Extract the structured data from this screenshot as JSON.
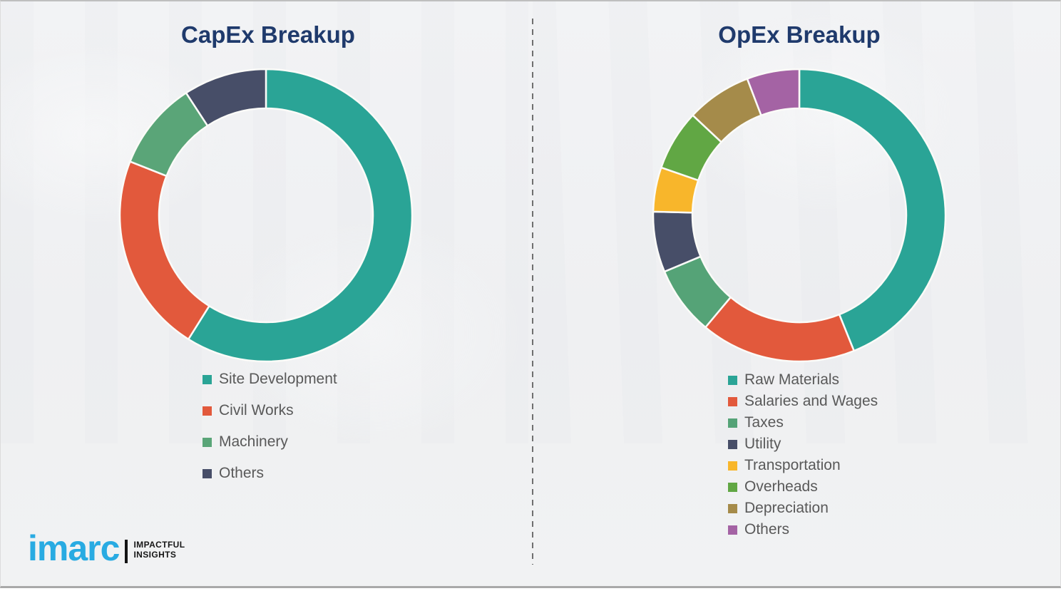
{
  "page": {
    "title_color": "#1f3a6c",
    "background_color": "#f1f2f3",
    "divider_color": "#6f6f6f",
    "legend_text_color": "#595959"
  },
  "chart_data": [
    {
      "type": "pie",
      "subtype": "donut",
      "title": "CapEx Breakup",
      "labels": [
        "Site Development",
        "Civil Works",
        "Machinery",
        "Others"
      ],
      "values": [
        58.9,
        22.1,
        9.8,
        9.2
      ],
      "colors": [
        "#2aa496",
        "#e2593c",
        "#5aa578",
        "#474e68"
      ],
      "units": "percent",
      "start_angle": "12-oclock-clockwise",
      "legend_position": "below-left"
    },
    {
      "type": "pie",
      "subtype": "donut",
      "title": "OpEx Breakup",
      "labels": [
        "Raw Materials",
        "Salaries and Wages",
        "Taxes",
        "Utility",
        "Transportation",
        "Overheads",
        "Depreciation",
        "Others"
      ],
      "values": [
        43.9,
        17.2,
        7.6,
        6.7,
        4.9,
        6.7,
        7.2,
        5.8
      ],
      "colors": [
        "#2aa496",
        "#e2593c",
        "#55a377",
        "#474e68",
        "#f8b62b",
        "#61a744",
        "#a58b4a",
        "#a463a4"
      ],
      "units": "percent",
      "start_angle": "12-oclock-clockwise",
      "legend_position": "below-left"
    }
  ],
  "logo": {
    "wordmark": "imarc",
    "tagline_line1": "IMPACTFUL",
    "tagline_line2": "INSIGHTS",
    "brand_color": "#29abe2"
  }
}
